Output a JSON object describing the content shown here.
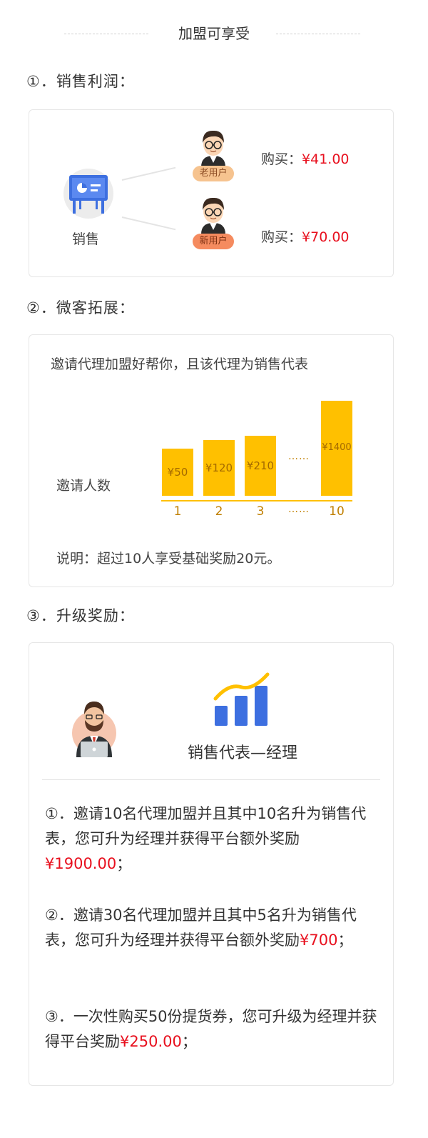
{
  "header": {
    "title": "加盟可享受"
  },
  "section1": {
    "heading": "①．销售利润：",
    "sales_label": "销售",
    "old_user": {
      "badge": "老用户",
      "buy_label": "购买：",
      "amount": "¥41.00"
    },
    "new_user": {
      "badge": "新用户",
      "buy_label": "购买：",
      "amount": "¥70.00"
    }
  },
  "section2": {
    "heading": "②．微客拓展：",
    "description": "邀请代理加盟好帮你，且该代理为销售代表",
    "y_label": "邀请人数",
    "ellipsis": "……",
    "note": "说明：超过10人享受基础奖励20元。"
  },
  "chart_data": {
    "type": "bar",
    "categories": [
      "1",
      "2",
      "3",
      "10"
    ],
    "values": [
      50,
      120,
      210,
      1400
    ],
    "value_labels": [
      "¥50",
      "¥120",
      "¥210",
      "¥1400"
    ],
    "title": "",
    "xlabel": "",
    "ylabel": "邀请人数",
    "colors": {
      "bar": "#ffc000",
      "label": "#a46a00",
      "tick": "#c07f00"
    }
  },
  "section3": {
    "heading": "③．升级奖励：",
    "promo_title": "销售代表—经理",
    "items": [
      {
        "text": "①．邀请10名代理加盟并且其中10名升为销售代表，您可升为经理并获得平台额外奖励",
        "amount": "¥1900.00",
        "end": "；"
      },
      {
        "text": "②．邀请30名代理加盟并且其中5名升为销售代表，您可升为经理并获得平台额外奖励",
        "amount": "¥700",
        "end": "；"
      },
      {
        "text": "③．一次性购买50份提货券，您可升级为经理并获得平台奖励",
        "amount": "¥250.00",
        "end": "；"
      }
    ]
  },
  "colors": {
    "accent_red": "#e8101e",
    "bar_yellow": "#ffc000",
    "icon_blue": "#3d6fe0"
  }
}
